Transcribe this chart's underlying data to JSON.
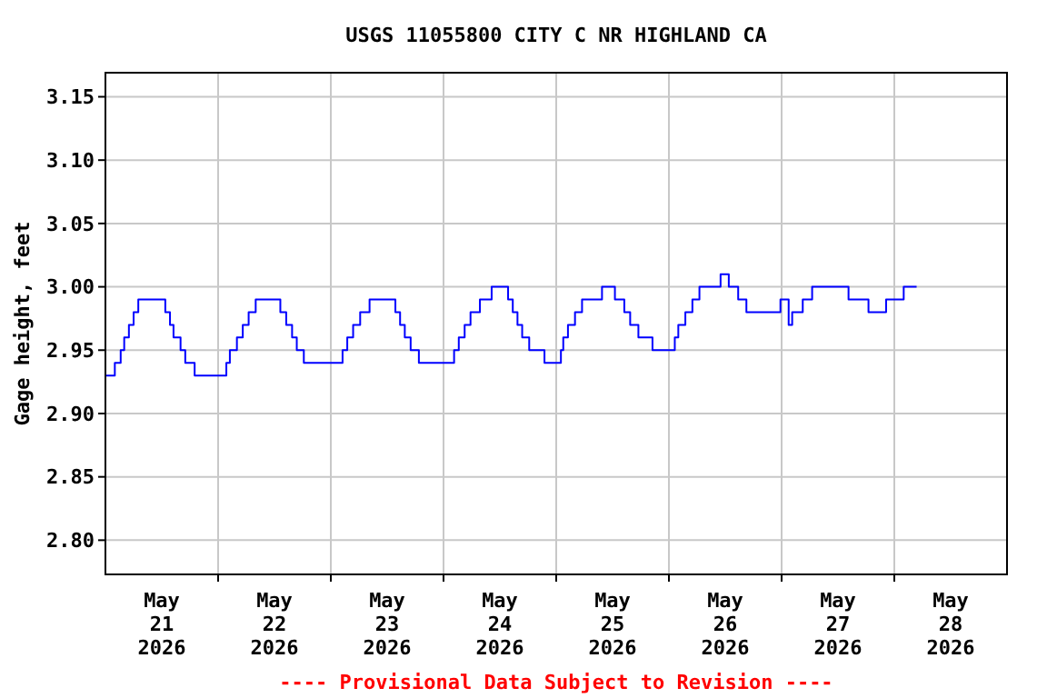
{
  "chart_data": {
    "type": "step",
    "title": "USGS 11055800 CITY C NR HIGHLAND CA",
    "ylabel": "Gage height, feet",
    "annotations": [
      "---- Provisional Data Subject to Revision ----"
    ],
    "xlim": [
      "2026-05-21T00:00",
      "2026-05-29T00:00"
    ],
    "xticks": [
      {
        "value": "2026-05-21T12:00",
        "label": "May\n21\n2026"
      },
      {
        "value": "2026-05-22T00:00",
        "label": null
      },
      {
        "value": "2026-05-22T12:00",
        "label": "May\n22\n2026"
      },
      {
        "value": "2026-05-23T00:00",
        "label": null
      },
      {
        "value": "2026-05-23T12:00",
        "label": "May\n23\n2026"
      },
      {
        "value": "2026-05-24T00:00",
        "label": null
      },
      {
        "value": "2026-05-24T12:00",
        "label": "May\n24\n2026"
      },
      {
        "value": "2026-05-25T00:00",
        "label": null
      },
      {
        "value": "2026-05-25T12:00",
        "label": "May\n25\n2026"
      },
      {
        "value": "2026-05-26T00:00",
        "label": null
      },
      {
        "value": "2026-05-26T12:00",
        "label": "May\n26\n2026"
      },
      {
        "value": "2026-05-27T00:00",
        "label": null
      },
      {
        "value": "2026-05-27T12:00",
        "label": "May\n27\n2026"
      },
      {
        "value": "2026-05-28T00:00",
        "label": null
      },
      {
        "value": "2026-05-28T12:00",
        "label": "May\n28\n2026"
      }
    ],
    "ylim": [
      2.773,
      3.169
    ],
    "yticks": [
      {
        "value": 2.8,
        "label": "2.80"
      },
      {
        "value": 2.85,
        "label": "2.85"
      },
      {
        "value": 2.9,
        "label": "2.90"
      },
      {
        "value": 2.95,
        "label": "2.95"
      },
      {
        "value": 3.0,
        "label": "3.00"
      },
      {
        "value": 3.05,
        "label": "3.05"
      },
      {
        "value": 3.1,
        "label": "3.10"
      },
      {
        "value": 3.15,
        "label": "3.15"
      }
    ],
    "grid": true,
    "series": [
      {
        "color": "#0000ff",
        "x": [
          "2026-05-21T00:00",
          "2026-05-21T02:00",
          "2026-05-21T03:15",
          "2026-05-21T04:00",
          "2026-05-21T05:00",
          "2026-05-21T06:00",
          "2026-05-21T07:00",
          "2026-05-21T12:45",
          "2026-05-21T13:45",
          "2026-05-21T14:30",
          "2026-05-21T16:00",
          "2026-05-21T17:00",
          "2026-05-21T19:00",
          "2026-05-22T01:45",
          "2026-05-22T02:30",
          "2026-05-22T04:00",
          "2026-05-22T05:15",
          "2026-05-22T06:30",
          "2026-05-22T08:00",
          "2026-05-22T13:15",
          "2026-05-22T14:30",
          "2026-05-22T15:45",
          "2026-05-22T16:45",
          "2026-05-22T18:15",
          "2026-05-23T02:30",
          "2026-05-23T03:30",
          "2026-05-23T04:45",
          "2026-05-23T06:15",
          "2026-05-23T08:15",
          "2026-05-23T13:45",
          "2026-05-23T14:45",
          "2026-05-23T15:45",
          "2026-05-23T17:00",
          "2026-05-23T18:45",
          "2026-05-24T02:15",
          "2026-05-24T03:15",
          "2026-05-24T04:30",
          "2026-05-24T05:45",
          "2026-05-24T07:45",
          "2026-05-24T10:15",
          "2026-05-24T13:45",
          "2026-05-24T14:45",
          "2026-05-24T15:45",
          "2026-05-24T16:45",
          "2026-05-24T18:15",
          "2026-05-24T21:30",
          "2026-05-25T01:00",
          "2026-05-25T01:30",
          "2026-05-25T02:30",
          "2026-05-25T04:00",
          "2026-05-25T05:30",
          "2026-05-25T09:45",
          "2026-05-25T12:30",
          "2026-05-25T14:30",
          "2026-05-25T15:45",
          "2026-05-25T17:30",
          "2026-05-25T20:30",
          "2026-05-26T01:15",
          "2026-05-26T02:00",
          "2026-05-26T03:30",
          "2026-05-26T05:00",
          "2026-05-26T06:30",
          "2026-05-26T11:00",
          "2026-05-26T12:45",
          "2026-05-26T14:45",
          "2026-05-26T16:30",
          "2026-05-26T23:45",
          "2026-05-27T01:30",
          "2026-05-27T02:15",
          "2026-05-27T04:30",
          "2026-05-27T06:30",
          "2026-05-27T14:15",
          "2026-05-27T18:30",
          "2026-05-27T22:15",
          "2026-05-28T02:00",
          "2026-05-28T04:45"
        ],
        "values": [
          2.93,
          2.94,
          2.95,
          2.96,
          2.97,
          2.98,
          2.99,
          2.98,
          2.97,
          2.96,
          2.95,
          2.94,
          2.93,
          2.94,
          2.95,
          2.96,
          2.97,
          2.98,
          2.99,
          2.98,
          2.97,
          2.96,
          2.95,
          2.94,
          2.95,
          2.96,
          2.97,
          2.98,
          2.99,
          2.98,
          2.97,
          2.96,
          2.95,
          2.94,
          2.95,
          2.96,
          2.97,
          2.98,
          2.99,
          3.0,
          2.99,
          2.98,
          2.97,
          2.96,
          2.95,
          2.94,
          2.95,
          2.96,
          2.97,
          2.98,
          2.99,
          3.0,
          2.99,
          2.98,
          2.97,
          2.96,
          2.95,
          2.96,
          2.97,
          2.98,
          2.99,
          3.0,
          3.01,
          3.0,
          2.99,
          2.98,
          2.99,
          2.97,
          2.98,
          2.99,
          3.0,
          2.99,
          2.98,
          2.99,
          3.0,
          3.0
        ]
      }
    ]
  }
}
